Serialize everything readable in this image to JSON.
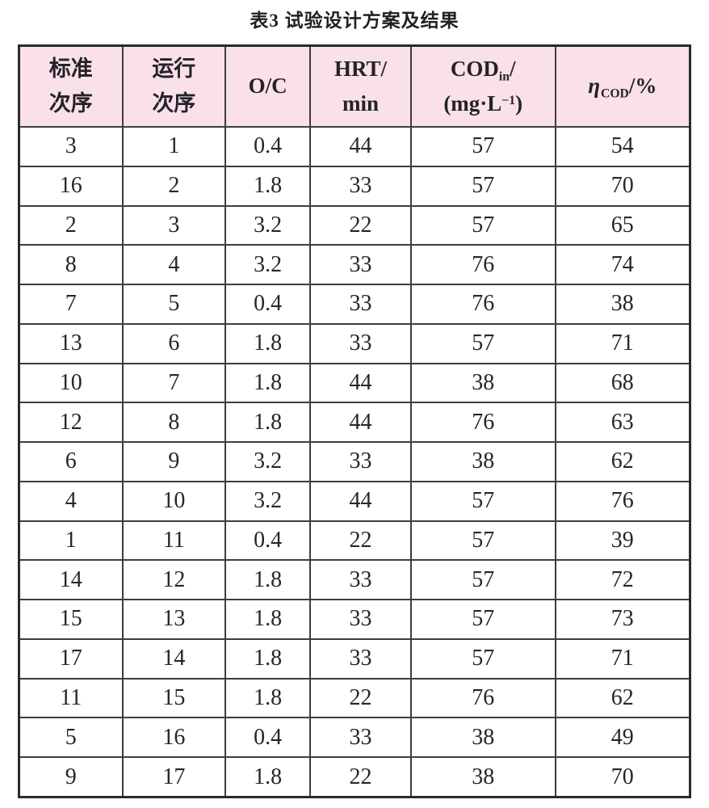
{
  "title": "表3  试验设计方案及结果",
  "colors": {
    "page_bg": "#ffffff",
    "header_bg": "#fae0e9",
    "inner_border": "#3d3d3d",
    "outer_border": "#2b2b2b",
    "text": "#26262b"
  },
  "table": {
    "col_widths_pct": [
      15.35,
      15.35,
      12.6,
      15.0,
      21.6,
      20.1
    ],
    "columns": [
      {
        "name": "standard-order",
        "plain": "标准次序",
        "parts": [
          {
            "t": "标准"
          },
          {
            "br": true
          },
          {
            "t": "次序"
          }
        ]
      },
      {
        "name": "run-order",
        "plain": "运行次序",
        "parts": [
          {
            "t": "运行"
          },
          {
            "br": true
          },
          {
            "t": "次序"
          }
        ]
      },
      {
        "name": "oc-ratio",
        "plain": "O/C",
        "parts": [
          {
            "t": "O/C"
          }
        ]
      },
      {
        "name": "hrt",
        "plain": "HRT/min",
        "parts": [
          {
            "t": "HRT/"
          },
          {
            "br": true
          },
          {
            "t": "min"
          }
        ]
      },
      {
        "name": "cod-in",
        "plain": "CODin/(mg·L−1)",
        "parts": [
          {
            "t": "COD"
          },
          {
            "sub": "in"
          },
          {
            "t": "/"
          },
          {
            "br": true
          },
          {
            "t": "(mg·L"
          },
          {
            "sup": "−1"
          },
          {
            "t": ")"
          }
        ]
      },
      {
        "name": "cod-removal",
        "plain": "ηCOD/%",
        "parts": [
          {
            "i": "η"
          },
          {
            "sub": "COD"
          },
          {
            "t": "/%"
          }
        ]
      }
    ],
    "rows": [
      [
        "3",
        "1",
        "0.4",
        "44",
        "57",
        "54"
      ],
      [
        "16",
        "2",
        "1.8",
        "33",
        "57",
        "70"
      ],
      [
        "2",
        "3",
        "3.2",
        "22",
        "57",
        "65"
      ],
      [
        "8",
        "4",
        "3.2",
        "33",
        "76",
        "74"
      ],
      [
        "7",
        "5",
        "0.4",
        "33",
        "76",
        "38"
      ],
      [
        "13",
        "6",
        "1.8",
        "33",
        "57",
        "71"
      ],
      [
        "10",
        "7",
        "1.8",
        "44",
        "38",
        "68"
      ],
      [
        "12",
        "8",
        "1.8",
        "44",
        "76",
        "63"
      ],
      [
        "6",
        "9",
        "3.2",
        "33",
        "38",
        "62"
      ],
      [
        "4",
        "10",
        "3.2",
        "44",
        "57",
        "76"
      ],
      [
        "1",
        "11",
        "0.4",
        "22",
        "57",
        "39"
      ],
      [
        "14",
        "12",
        "1.8",
        "33",
        "57",
        "72"
      ],
      [
        "15",
        "13",
        "1.8",
        "33",
        "57",
        "73"
      ],
      [
        "17",
        "14",
        "1.8",
        "33",
        "57",
        "71"
      ],
      [
        "11",
        "15",
        "1.8",
        "22",
        "76",
        "62"
      ],
      [
        "5",
        "16",
        "0.4",
        "33",
        "38",
        "49"
      ],
      [
        "9",
        "17",
        "1.8",
        "22",
        "38",
        "70"
      ]
    ]
  },
  "chart_data": {
    "type": "table",
    "title": "表3 试验设计方案及结果",
    "columns": [
      "标准次序",
      "运行次序",
      "O/C",
      "HRT/min",
      "CODin/(mg·L−1)",
      "ηCOD/%"
    ],
    "rows": [
      [
        3,
        1,
        0.4,
        44,
        57,
        54
      ],
      [
        16,
        2,
        1.8,
        33,
        57,
        70
      ],
      [
        2,
        3,
        3.2,
        22,
        57,
        65
      ],
      [
        8,
        4,
        3.2,
        33,
        76,
        74
      ],
      [
        7,
        5,
        0.4,
        33,
        76,
        38
      ],
      [
        13,
        6,
        1.8,
        33,
        57,
        71
      ],
      [
        10,
        7,
        1.8,
        44,
        38,
        68
      ],
      [
        12,
        8,
        1.8,
        44,
        76,
        63
      ],
      [
        6,
        9,
        3.2,
        33,
        38,
        62
      ],
      [
        4,
        10,
        3.2,
        44,
        57,
        76
      ],
      [
        1,
        11,
        0.4,
        22,
        57,
        39
      ],
      [
        14,
        12,
        1.8,
        33,
        57,
        72
      ],
      [
        15,
        13,
        1.8,
        33,
        57,
        73
      ],
      [
        17,
        14,
        1.8,
        33,
        57,
        71
      ],
      [
        11,
        15,
        1.8,
        22,
        76,
        62
      ],
      [
        5,
        16,
        0.4,
        33,
        38,
        49
      ],
      [
        9,
        17,
        1.8,
        22,
        38,
        70
      ]
    ]
  }
}
